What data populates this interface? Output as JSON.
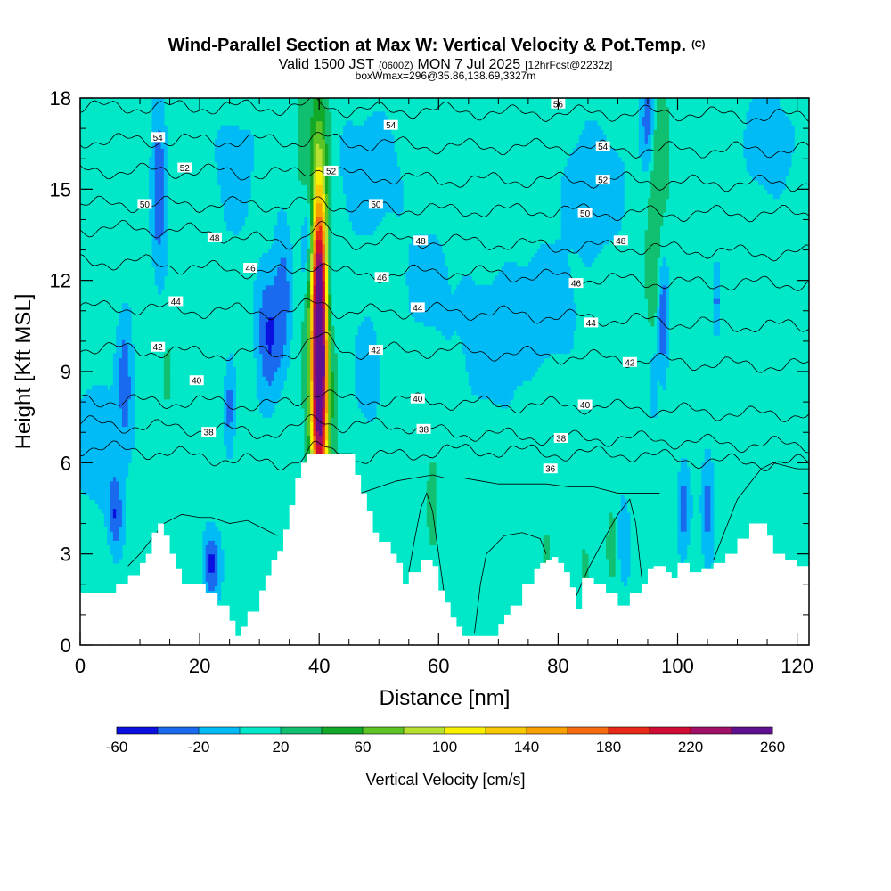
{
  "title": {
    "main": "Wind-Parallel Section at Max W: Vertical Velocity & Pot.Temp.",
    "main_mark": "(C)",
    "valid_prefix": "Valid 1500 JST",
    "valid_utc": "(0600Z)",
    "valid_date": "MON 7 Jul 2025",
    "forecast": "[12hrFcst@2232z]",
    "box": "boxWmax=296@35.86,138.69,3327m"
  },
  "chart_data": {
    "type": "heatmap",
    "xlabel": "Distance [nm]",
    "ylabel": "Height [Kft MSL]",
    "xlim": [
      0,
      122
    ],
    "ylim": [
      0,
      18
    ],
    "x_ticks": [
      0,
      20,
      40,
      60,
      80,
      100,
      120
    ],
    "y_ticks": [
      0,
      3,
      6,
      9,
      12,
      15,
      18
    ],
    "colorbar": {
      "label": "Vertical Velocity [cm/s]",
      "tick_labels": [
        "-60",
        "-20",
        "20",
        "60",
        "100",
        "140",
        "180",
        "220",
        "260"
      ],
      "bounds": [
        -60,
        -40,
        -20,
        0,
        20,
        40,
        60,
        80,
        100,
        120,
        140,
        160,
        180,
        200,
        220,
        240,
        260
      ],
      "colors": [
        "#0a10e0",
        "#1a6af0",
        "#00bbf5",
        "#00e8c8",
        "#10c070",
        "#12a828",
        "#5cc424",
        "#b8e030",
        "#f8f000",
        "#f8c800",
        "#f8a000",
        "#f86a10",
        "#e82818",
        "#d00c34",
        "#a01068",
        "#5e1090"
      ]
    },
    "background_w": 10,
    "terrain": [
      [
        0,
        1.7
      ],
      [
        2,
        1.7
      ],
      [
        4,
        1.7
      ],
      [
        6,
        2.0
      ],
      [
        8,
        2.3
      ],
      [
        10,
        2.7
      ],
      [
        11,
        3.0
      ],
      [
        12,
        3.7
      ],
      [
        13,
        4.0
      ],
      [
        14,
        3.6
      ],
      [
        15,
        3.0
      ],
      [
        16,
        2.5
      ],
      [
        17,
        2.0
      ],
      [
        19,
        2.0
      ],
      [
        20,
        2.0
      ],
      [
        21,
        1.7
      ],
      [
        23,
        1.3
      ],
      [
        25,
        0.8
      ],
      [
        26,
        0.3
      ],
      [
        27,
        0.6
      ],
      [
        28,
        1.1
      ],
      [
        30,
        1.8
      ],
      [
        31,
        2.3
      ],
      [
        32,
        2.8
      ],
      [
        33,
        3.1
      ],
      [
        34,
        3.8
      ],
      [
        35,
        4.6
      ],
      [
        36,
        5.5
      ],
      [
        37,
        6.0
      ],
      [
        38,
        6.3
      ],
      [
        40,
        6.3
      ],
      [
        42,
        6.3
      ],
      [
        45,
        6.3
      ],
      [
        46,
        5.6
      ],
      [
        47,
        5.0
      ],
      [
        48,
        4.4
      ],
      [
        49,
        3.7
      ],
      [
        50,
        3.4
      ],
      [
        52,
        3.0
      ],
      [
        53,
        2.7
      ],
      [
        54,
        2.0
      ],
      [
        55,
        2.4
      ],
      [
        57,
        2.8
      ],
      [
        59,
        2.6
      ],
      [
        60,
        1.8
      ],
      [
        61,
        1.4
      ],
      [
        62,
        0.9
      ],
      [
        63,
        0.6
      ],
      [
        64,
        0.3
      ],
      [
        68,
        0.3
      ],
      [
        70,
        0.7
      ],
      [
        71,
        1.0
      ],
      [
        72,
        1.3
      ],
      [
        74,
        2.0
      ],
      [
        76,
        2.5
      ],
      [
        77,
        2.7
      ],
      [
        78,
        2.8
      ],
      [
        79,
        2.9
      ],
      [
        80,
        2.7
      ],
      [
        81,
        2.4
      ],
      [
        82,
        1.9
      ],
      [
        83,
        1.2
      ],
      [
        84,
        2.2
      ],
      [
        86,
        2.0
      ],
      [
        88,
        1.7
      ],
      [
        90,
        1.3
      ],
      [
        92,
        1.7
      ],
      [
        94,
        2.0
      ],
      [
        95,
        2.5
      ],
      [
        96,
        2.6
      ],
      [
        98,
        2.4
      ],
      [
        99,
        2.2
      ],
      [
        100,
        2.7
      ],
      [
        102,
        2.4
      ],
      [
        104,
        2.5
      ],
      [
        106,
        2.7
      ],
      [
        108,
        3.0
      ],
      [
        110,
        3.5
      ],
      [
        112,
        4.0
      ],
      [
        113,
        4.0
      ],
      [
        115,
        3.6
      ],
      [
        116,
        3.0
      ],
      [
        118,
        2.8
      ],
      [
        120,
        2.6
      ],
      [
        122,
        2.6
      ]
    ],
    "updrafts": [
      {
        "x": 40.0,
        "y": 10.3,
        "sx": 0.9,
        "sy": 3.6,
        "w": 260
      },
      {
        "x": 40.2,
        "y": 8.0,
        "sx": 1.2,
        "sy": 2.6,
        "w": 70
      },
      {
        "x": 40.0,
        "y": 11.2,
        "sx": 2.0,
        "sy": 5.4,
        "w": 32
      },
      {
        "x": 37.5,
        "y": 16.5,
        "sx": 0.9,
        "sy": 2.0,
        "w": 30
      },
      {
        "x": 96.0,
        "y": 14.0,
        "sx": 1.1,
        "sy": 3.3,
        "w": 34
      },
      {
        "x": 97.5,
        "y": 16.5,
        "sx": 0.9,
        "sy": 1.5,
        "w": 28
      },
      {
        "x": 14.0,
        "y": 17.0,
        "sx": 1.5,
        "sy": 1.3,
        "w": 22
      },
      {
        "x": 7.0,
        "y": 13.5,
        "sx": 1.8,
        "sy": 1.3,
        "w": 20
      },
      {
        "x": 14.5,
        "y": 8.8,
        "sx": 0.5,
        "sy": 1.0,
        "w": 26
      },
      {
        "x": 20.0,
        "y": 10.0,
        "sx": 1.8,
        "sy": 1.6,
        "w": 16
      },
      {
        "x": 52.0,
        "y": 8.4,
        "sx": 1.0,
        "sy": 1.7,
        "w": 18
      },
      {
        "x": 59.0,
        "y": 4.6,
        "sx": 0.6,
        "sy": 1.1,
        "w": 34
      },
      {
        "x": 66.5,
        "y": 4.0,
        "sx": 0.8,
        "sy": 1.6,
        "w": 16
      },
      {
        "x": 78.0,
        "y": 3.0,
        "sx": 0.9,
        "sy": 0.8,
        "w": 24
      },
      {
        "x": 84.5,
        "y": 2.5,
        "sx": 0.8,
        "sy": 1.0,
        "w": 24
      },
      {
        "x": 89.0,
        "y": 3.5,
        "sx": 0.7,
        "sy": 1.0,
        "w": 28
      },
      {
        "x": 104.5,
        "y": 12.0,
        "sx": 0.7,
        "sy": 1.3,
        "w": 18
      },
      {
        "x": 107.0,
        "y": 14.5,
        "sx": 0.8,
        "sy": 1.0,
        "w": 16
      },
      {
        "x": 112.0,
        "y": 13.0,
        "sx": 2.0,
        "sy": 1.3,
        "w": 18
      },
      {
        "x": 114.0,
        "y": 7.0,
        "sx": 2.0,
        "sy": 1.5,
        "w": 18
      },
      {
        "x": 70.0,
        "y": 15.5,
        "sx": 3.0,
        "sy": 1.2,
        "w": 14
      },
      {
        "x": 118.0,
        "y": 10.5,
        "sx": 2.0,
        "sy": 1.2,
        "w": 16
      },
      {
        "x": 30.0,
        "y": 14.5,
        "sx": 1.5,
        "sy": 1.2,
        "w": 14
      }
    ],
    "downdrafts": [
      {
        "x": 13.2,
        "y": 15.5,
        "sx": 0.9,
        "sy": 2.3,
        "w": -42
      },
      {
        "x": 7.5,
        "y": 8.9,
        "sx": 0.9,
        "sy": 1.5,
        "w": -32
      },
      {
        "x": 31.5,
        "y": 10.2,
        "sx": 1.4,
        "sy": 1.5,
        "w": -42
      },
      {
        "x": 34.0,
        "y": 11.6,
        "sx": 1.0,
        "sy": 1.5,
        "w": -30
      },
      {
        "x": 38.0,
        "y": 13.5,
        "sx": 0.9,
        "sy": 1.4,
        "w": -32
      },
      {
        "x": 42.0,
        "y": 11.5,
        "sx": 0.8,
        "sy": 1.3,
        "w": -22
      },
      {
        "x": 6.0,
        "y": 4.2,
        "sx": 0.8,
        "sy": 0.9,
        "w": -35
      },
      {
        "x": 22.0,
        "y": 2.7,
        "sx": 1.0,
        "sy": 0.8,
        "w": -42
      },
      {
        "x": 25.0,
        "y": 7.8,
        "sx": 0.6,
        "sy": 1.0,
        "w": -30
      },
      {
        "x": 48.0,
        "y": 9.0,
        "sx": 1.5,
        "sy": 1.2,
        "w": -18
      },
      {
        "x": 69.0,
        "y": 10.0,
        "sx": 4.0,
        "sy": 1.5,
        "w": -16
      },
      {
        "x": 78.0,
        "y": 11.2,
        "sx": 3.5,
        "sy": 1.3,
        "w": -16
      },
      {
        "x": 95.0,
        "y": 17.3,
        "sx": 0.8,
        "sy": 1.2,
        "w": -42
      },
      {
        "x": 97.5,
        "y": 10.8,
        "sx": 0.6,
        "sy": 1.4,
        "w": -42
      },
      {
        "x": 96.0,
        "y": 8.5,
        "sx": 0.4,
        "sy": 0.8,
        "w": -30
      },
      {
        "x": 101.0,
        "y": 4.5,
        "sx": 0.7,
        "sy": 1.0,
        "w": -32
      },
      {
        "x": 105.0,
        "y": 4.5,
        "sx": 0.7,
        "sy": 1.2,
        "w": -30
      },
      {
        "x": 91.0,
        "y": 3.5,
        "sx": 0.7,
        "sy": 1.0,
        "w": -20
      },
      {
        "x": 106.5,
        "y": 11.3,
        "sx": 0.4,
        "sy": 0.8,
        "w": -25
      },
      {
        "x": 3.0,
        "y": 6.5,
        "sx": 3.0,
        "sy": 1.5,
        "w": -16
      },
      {
        "x": 48.0,
        "y": 15.5,
        "sx": 4.0,
        "sy": 1.5,
        "w": -14
      },
      {
        "x": 86.0,
        "y": 15.0,
        "sx": 4.0,
        "sy": 1.5,
        "w": -14
      },
      {
        "x": 115.0,
        "y": 16.5,
        "sx": 3.0,
        "sy": 1.2,
        "w": -16
      },
      {
        "x": 58.0,
        "y": 12.0,
        "sx": 3.0,
        "sy": 1.2,
        "w": -12
      },
      {
        "x": 26.0,
        "y": 15.5,
        "sx": 2.5,
        "sy": 1.5,
        "w": -12
      }
    ],
    "theta_contours": [
      {
        "value": 36,
        "heights": [
          6.5,
          6.4,
          6.2,
          6.0,
          6.0,
          6.2,
          6.4,
          6.4,
          6.3,
          6.3,
          6.1,
          6.0,
          6.0
        ]
      },
      {
        "value": 38,
        "heights": [
          7.3,
          7.2,
          7.1,
          7.0,
          7.0,
          7.3,
          7.0,
          6.9,
          6.8,
          6.8,
          6.7,
          6.6,
          6.6
        ]
      },
      {
        "value": 40,
        "heights": [
          8.1,
          8.0,
          8.0,
          7.9,
          7.9,
          8.1,
          8.0,
          7.9,
          7.9,
          7.8,
          7.7,
          7.6,
          7.6
        ]
      },
      {
        "value": 42,
        "heights": [
          9.8,
          9.7,
          9.6,
          9.6,
          9.6,
          9.7,
          9.7,
          9.6,
          9.5,
          9.4,
          9.3,
          9.2,
          9.2
        ]
      },
      {
        "value": 44,
        "heights": [
          11.1,
          11.1,
          11.0,
          11.0,
          10.8,
          11.0,
          11.0,
          10.9,
          10.8,
          10.7,
          10.6,
          10.5,
          10.5
        ]
      },
      {
        "value": 46,
        "heights": [
          12.6,
          12.6,
          12.4,
          12.3,
          12.1,
          12.2,
          12.3,
          12.2,
          12.1,
          12.0,
          11.9,
          11.9,
          11.9
        ]
      },
      {
        "value": 48,
        "heights": [
          13.7,
          13.7,
          13.6,
          13.3,
          13.2,
          13.3,
          13.3,
          13.2,
          13.1,
          13.1,
          13.0,
          12.9,
          12.9
        ]
      },
      {
        "value": 50,
        "heights": [
          14.5,
          14.5,
          14.5,
          14.5,
          14.4,
          14.4,
          14.3,
          14.3,
          14.3,
          14.2,
          14.2,
          14.2,
          14.2
        ]
      },
      {
        "value": 52,
        "heights": [
          15.6,
          15.6,
          15.6,
          15.5,
          15.5,
          15.4,
          15.3,
          15.3,
          15.3,
          15.3,
          15.2,
          15.2,
          15.2
        ]
      },
      {
        "value": 54,
        "heights": [
          16.6,
          16.6,
          16.6,
          16.6,
          16.5,
          16.5,
          16.4,
          16.4,
          16.4,
          16.3,
          16.3,
          16.3,
          16.3
        ]
      },
      {
        "value": 56,
        "heights": [
          17.7,
          17.7,
          17.7,
          17.7,
          17.6,
          17.6,
          17.6,
          17.5,
          17.5,
          17.5,
          17.5,
          17.4,
          17.4
        ]
      }
    ],
    "contour_labels": [
      {
        "text": "36",
        "x": 78.7,
        "y": 5.8
      },
      {
        "text": "38",
        "x": 21.5,
        "y": 7.0
      },
      {
        "text": "38",
        "x": 57.5,
        "y": 7.1
      },
      {
        "text": "38",
        "x": 80.5,
        "y": 6.8
      },
      {
        "text": "40",
        "x": 19.5,
        "y": 8.7
      },
      {
        "text": "40",
        "x": 56.5,
        "y": 8.1
      },
      {
        "text": "40",
        "x": 84.5,
        "y": 7.9
      },
      {
        "text": "42",
        "x": 13.0,
        "y": 9.8
      },
      {
        "text": "42",
        "x": 49.5,
        "y": 9.7
      },
      {
        "text": "42",
        "x": 92.0,
        "y": 9.3
      },
      {
        "text": "44",
        "x": 16.0,
        "y": 11.3
      },
      {
        "text": "44",
        "x": 56.5,
        "y": 11.1
      },
      {
        "text": "44",
        "x": 85.5,
        "y": 10.6
      },
      {
        "text": "46",
        "x": 28.5,
        "y": 12.4
      },
      {
        "text": "46",
        "x": 50.5,
        "y": 12.1
      },
      {
        "text": "46",
        "x": 83.0,
        "y": 11.9
      },
      {
        "text": "48",
        "x": 22.5,
        "y": 13.4
      },
      {
        "text": "48",
        "x": 57.0,
        "y": 13.3
      },
      {
        "text": "48",
        "x": 90.5,
        "y": 13.3
      },
      {
        "text": "50",
        "x": 10.8,
        "y": 14.5
      },
      {
        "text": "50",
        "x": 49.5,
        "y": 14.5
      },
      {
        "text": "50",
        "x": 84.5,
        "y": 14.2
      },
      {
        "text": "52",
        "x": 17.5,
        "y": 15.7
      },
      {
        "text": "52",
        "x": 42.0,
        "y": 15.6
      },
      {
        "text": "52",
        "x": 87.5,
        "y": 15.3
      },
      {
        "text": "54",
        "x": 13.0,
        "y": 16.7
      },
      {
        "text": "54",
        "x": 52.0,
        "y": 17.1
      },
      {
        "text": "54",
        "x": 87.5,
        "y": 16.4
      },
      {
        "text": "56",
        "x": 80.0,
        "y": 17.8
      }
    ],
    "low_contours": [
      {
        "points": [
          [
            8,
            2.6
          ],
          [
            10,
            3.0
          ],
          [
            14,
            4.0
          ],
          [
            17,
            4.3
          ],
          [
            20,
            4.2
          ],
          [
            22,
            4.2
          ],
          [
            25,
            4.0
          ],
          [
            28,
            4.1
          ],
          [
            31,
            3.8
          ],
          [
            33,
            3.6
          ]
        ]
      },
      {
        "points": [
          [
            47,
            5.0
          ],
          [
            50,
            5.2
          ],
          [
            53,
            5.4
          ],
          [
            56,
            5.5
          ],
          [
            59,
            5.6
          ],
          [
            61,
            5.5
          ],
          [
            64,
            5.5
          ],
          [
            67,
            5.4
          ],
          [
            70,
            5.3
          ],
          [
            74,
            5.3
          ],
          [
            78,
            5.3
          ],
          [
            82,
            5.2
          ],
          [
            86,
            5.2
          ],
          [
            90,
            5.0
          ],
          [
            94,
            5.0
          ],
          [
            97,
            5.0
          ]
        ]
      },
      {
        "points": [
          [
            55,
            2.4
          ],
          [
            56,
            3.5
          ],
          [
            57,
            4.5
          ],
          [
            58,
            5.0
          ],
          [
            59,
            4.4
          ],
          [
            60,
            3.0
          ],
          [
            61,
            1.6
          ]
        ]
      },
      {
        "points": [
          [
            66,
            0.4
          ],
          [
            67,
            2.0
          ],
          [
            68,
            3.0
          ],
          [
            71,
            3.6
          ],
          [
            74,
            3.7
          ],
          [
            77,
            3.5
          ],
          [
            78,
            3.0
          ]
        ]
      },
      {
        "points": [
          [
            83,
            1.6
          ],
          [
            85,
            2.5
          ],
          [
            88,
            3.6
          ],
          [
            90,
            4.3
          ],
          [
            92,
            4.8
          ],
          [
            93,
            4.0
          ],
          [
            94,
            2.2
          ]
        ]
      },
      {
        "points": [
          [
            106,
            2.8
          ],
          [
            108,
            3.8
          ],
          [
            110,
            4.8
          ],
          [
            112,
            5.3
          ],
          [
            114,
            5.8
          ],
          [
            116,
            6.0
          ],
          [
            118,
            5.9
          ],
          [
            120,
            5.8
          ],
          [
            122,
            5.8
          ]
        ]
      }
    ]
  }
}
